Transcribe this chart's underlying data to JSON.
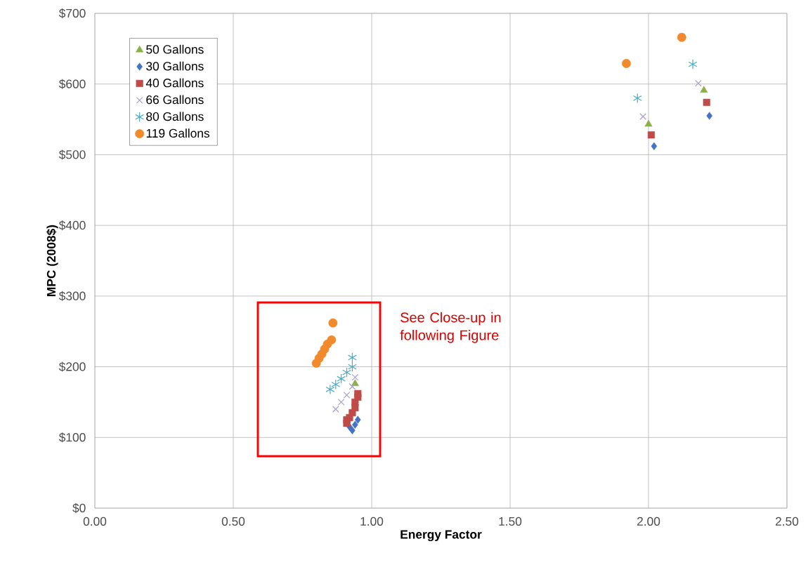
{
  "chart_data": {
    "type": "scatter",
    "xlabel": "Energy Factor",
    "ylabel": "MPC (2008$)",
    "xlim": [
      0,
      2.5
    ],
    "ylim": [
      0,
      700
    ],
    "xticks": [
      {
        "value": 0,
        "label": "0.00"
      },
      {
        "value": 0.5,
        "label": "0.50"
      },
      {
        "value": 1,
        "label": "1.00"
      },
      {
        "value": 1.5,
        "label": "1.50"
      },
      {
        "value": 2,
        "label": "2.00"
      },
      {
        "value": 2.5,
        "label": "2.50"
      }
    ],
    "yticks": [
      {
        "value": 0,
        "label": "$0"
      },
      {
        "value": 100,
        "label": "$100"
      },
      {
        "value": 200,
        "label": "$200"
      },
      {
        "value": 300,
        "label": "$300"
      },
      {
        "value": 400,
        "label": "$400"
      },
      {
        "value": 500,
        "label": "$500"
      },
      {
        "value": 600,
        "label": "$600"
      },
      {
        "value": 700,
        "label": "$700"
      }
    ],
    "grid": true,
    "legend": "top left",
    "annotations": [
      "See Close-up in following Figure"
    ],
    "series": [
      {
        "name": "50 Gallons",
        "color": "#8db045",
        "marker": "triangle",
        "x": [
          0.94,
          2.0,
          2.2
        ],
        "values": [
          176,
          543,
          591
        ]
      },
      {
        "name": "30 Gallons",
        "color": "#4472c4",
        "marker": "diamond",
        "x": [
          0.93,
          0.92,
          0.94,
          0.95,
          2.02,
          2.22
        ],
        "values": [
          110,
          115,
          118,
          125,
          512,
          555
        ]
      },
      {
        "name": "40 Gallons",
        "color": "#be4b48",
        "marker": "square",
        "x": [
          0.91,
          0.91,
          0.92,
          0.93,
          0.94,
          0.94,
          0.95,
          0.95,
          2.01,
          2.21
        ],
        "values": [
          120,
          125,
          128,
          135,
          142,
          150,
          157,
          162,
          528,
          574
        ]
      },
      {
        "name": "66 Gallons",
        "color": "#a99fd0",
        "marker": "cross",
        "x": [
          0.87,
          0.89,
          0.91,
          0.93,
          0.94,
          1.98,
          2.18
        ],
        "values": [
          140,
          150,
          160,
          172,
          185,
          554,
          601
        ]
      },
      {
        "name": "80 Gallons",
        "color": "#4bacc6",
        "x": [
          0.85,
          0.87,
          0.89,
          0.91,
          0.93,
          0.93,
          1.96,
          2.16
        ],
        "values": [
          168,
          175,
          183,
          192,
          200,
          213,
          580,
          628
        ]
      },
      {
        "name": "119 Gallons",
        "color": "#f08a2c",
        "marker": "circle",
        "x": [
          0.8,
          0.81,
          0.82,
          0.83,
          0.84,
          0.855,
          0.86,
          1.92,
          2.12
        ],
        "values": [
          205,
          212,
          218,
          225,
          232,
          238,
          262,
          629,
          666
        ]
      }
    ]
  }
}
